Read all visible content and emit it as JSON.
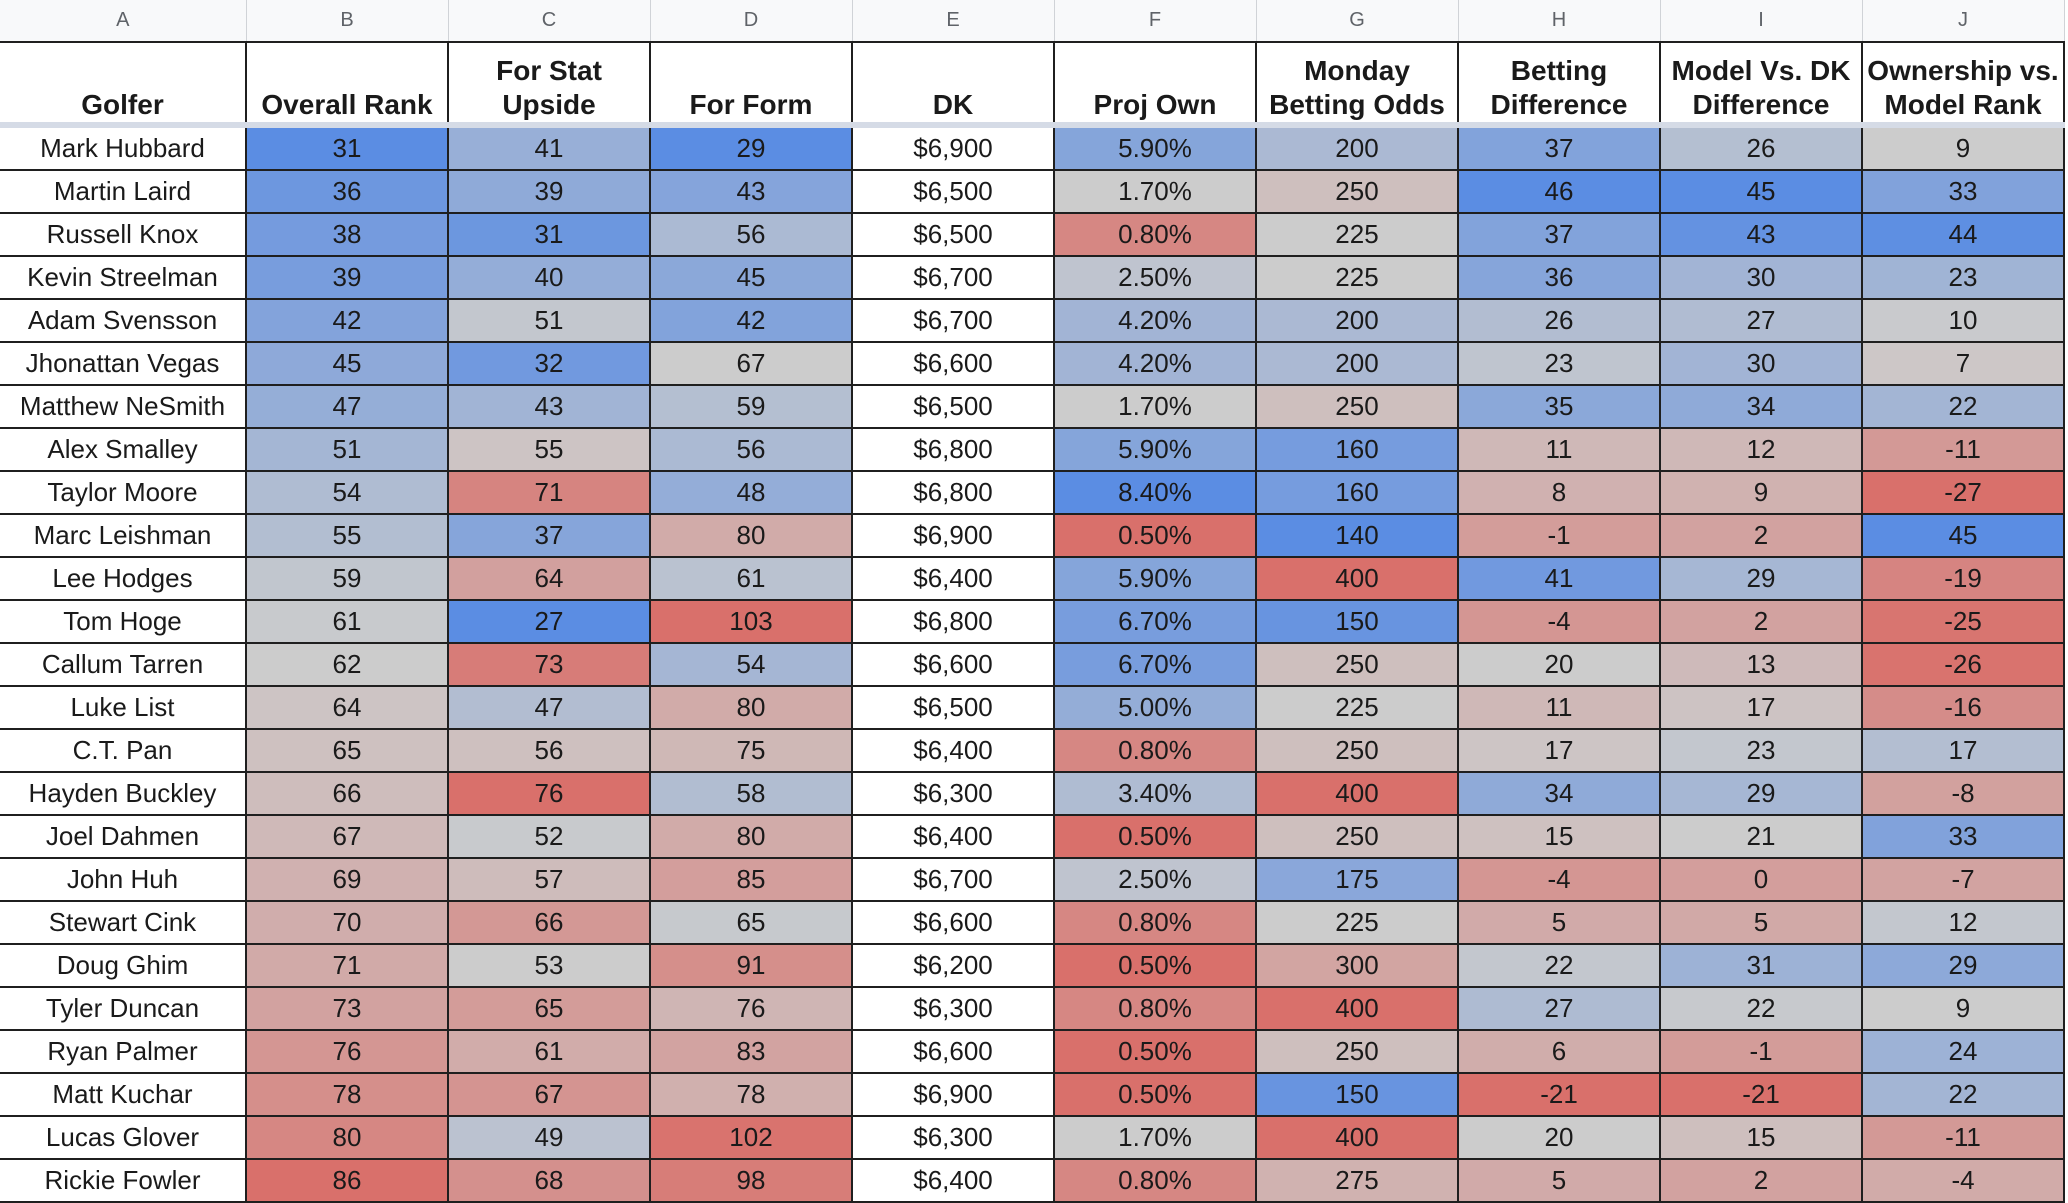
{
  "sheet": {
    "column_letters": [
      "A",
      "B",
      "C",
      "D",
      "E",
      "F",
      "G",
      "H",
      "I",
      "J"
    ],
    "headers": [
      "Golfer",
      "Overall Rank",
      "For Stat\nUpside",
      "For Form",
      "DK",
      "Proj Own",
      "Monday\nBetting Odds",
      "Betting\nDifference",
      "Model Vs. DK\nDifference",
      "Ownership vs.\nModel Rank"
    ],
    "rows": [
      [
        "Mark Hubbard",
        "31",
        "41",
        "29",
        "$6,900",
        "5.90%",
        "200",
        "37",
        "26",
        "9"
      ],
      [
        "Martin Laird",
        "36",
        "39",
        "43",
        "$6,500",
        "1.70%",
        "250",
        "46",
        "45",
        "33"
      ],
      [
        "Russell Knox",
        "38",
        "31",
        "56",
        "$6,500",
        "0.80%",
        "225",
        "37",
        "43",
        "44"
      ],
      [
        "Kevin Streelman",
        "39",
        "40",
        "45",
        "$6,700",
        "2.50%",
        "225",
        "36",
        "30",
        "23"
      ],
      [
        "Adam Svensson",
        "42",
        "51",
        "42",
        "$6,700",
        "4.20%",
        "200",
        "26",
        "27",
        "10"
      ],
      [
        "Jhonattan Vegas",
        "45",
        "32",
        "67",
        "$6,600",
        "4.20%",
        "200",
        "23",
        "30",
        "7"
      ],
      [
        "Matthew NeSmith",
        "47",
        "43",
        "59",
        "$6,500",
        "1.70%",
        "250",
        "35",
        "34",
        "22"
      ],
      [
        "Alex Smalley",
        "51",
        "55",
        "56",
        "$6,800",
        "5.90%",
        "160",
        "11",
        "12",
        "-11"
      ],
      [
        "Taylor Moore",
        "54",
        "71",
        "48",
        "$6,800",
        "8.40%",
        "160",
        "8",
        "9",
        "-27"
      ],
      [
        "Marc Leishman",
        "55",
        "37",
        "80",
        "$6,900",
        "0.50%",
        "140",
        "-1",
        "2",
        "45"
      ],
      [
        "Lee Hodges",
        "59",
        "64",
        "61",
        "$6,400",
        "5.90%",
        "400",
        "41",
        "29",
        "-19"
      ],
      [
        "Tom Hoge",
        "61",
        "27",
        "103",
        "$6,800",
        "6.70%",
        "150",
        "-4",
        "2",
        "-25"
      ],
      [
        "Callum Tarren",
        "62",
        "73",
        "54",
        "$6,600",
        "6.70%",
        "250",
        "20",
        "13",
        "-26"
      ],
      [
        "Luke List",
        "64",
        "47",
        "80",
        "$6,500",
        "5.00%",
        "225",
        "11",
        "17",
        "-16"
      ],
      [
        "C.T. Pan",
        "65",
        "56",
        "75",
        "$6,400",
        "0.80%",
        "250",
        "17",
        "23",
        "17"
      ],
      [
        "Hayden Buckley",
        "66",
        "76",
        "58",
        "$6,300",
        "3.40%",
        "400",
        "34",
        "29",
        "-8"
      ],
      [
        "Joel Dahmen",
        "67",
        "52",
        "80",
        "$6,400",
        "0.50%",
        "250",
        "15",
        "21",
        "33"
      ],
      [
        "John Huh",
        "69",
        "57",
        "85",
        "$6,700",
        "2.50%",
        "175",
        "-4",
        "0",
        "-7"
      ],
      [
        "Stewart Cink",
        "70",
        "66",
        "65",
        "$6,600",
        "0.80%",
        "225",
        "5",
        "5",
        "12"
      ],
      [
        "Doug Ghim",
        "71",
        "53",
        "91",
        "$6,200",
        "0.50%",
        "300",
        "22",
        "31",
        "29"
      ],
      [
        "Tyler Duncan",
        "73",
        "65",
        "76",
        "$6,300",
        "0.80%",
        "400",
        "27",
        "22",
        "9"
      ],
      [
        "Ryan Palmer",
        "76",
        "61",
        "83",
        "$6,600",
        "0.50%",
        "250",
        "6",
        "-1",
        "24"
      ],
      [
        "Matt Kuchar",
        "78",
        "67",
        "78",
        "$6,900",
        "0.50%",
        "150",
        "-21",
        "-21",
        "22"
      ],
      [
        "Lucas Glover",
        "80",
        "49",
        "102",
        "$6,300",
        "1.70%",
        "400",
        "20",
        "15",
        "-11"
      ],
      [
        "Rickie Fowler",
        "86",
        "68",
        "98",
        "$6,400",
        "0.80%",
        "275",
        "5",
        "2",
        "-4"
      ]
    ],
    "colors": {
      "blue": "#5b8de3",
      "mid": "#cccccc",
      "red": "#d9706b"
    }
  }
}
